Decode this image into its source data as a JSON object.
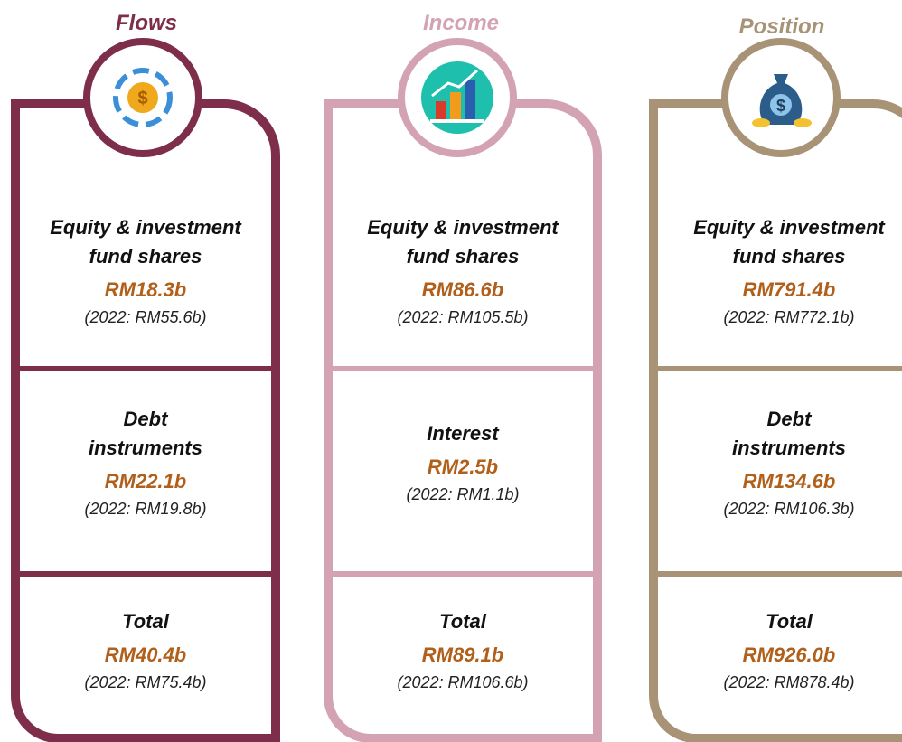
{
  "columns": [
    {
      "title": "Flows",
      "color": "#7e2d4a",
      "sections": [
        {
          "label": [
            "Equity & investment",
            "fund shares"
          ],
          "value": "RM18.3b",
          "previous": "(2022: RM55.6b)"
        },
        {
          "label": [
            "Debt",
            "instruments"
          ],
          "value": "RM22.1b",
          "previous": "(2022: RM19.8b)"
        },
        {
          "label": [
            "Total"
          ],
          "value": "RM40.4b",
          "previous": "(2022: RM75.4b)"
        }
      ]
    },
    {
      "title": "Income",
      "color": "#d3a3b4",
      "sections": [
        {
          "label": [
            "Equity & investment",
            "fund shares"
          ],
          "value": "RM86.6b",
          "previous": "(2022: RM105.5b)"
        },
        {
          "label": [
            "Interest"
          ],
          "value": "RM2.5b",
          "previous": "(2022: RM1.1b)"
        },
        {
          "label": [
            "Total"
          ],
          "value": "RM89.1b",
          "previous": "(2022: RM106.6b)"
        }
      ]
    },
    {
      "title": "Position",
      "color": "#a89377",
      "sections": [
        {
          "label": [
            "Equity & investment",
            "fund shares"
          ],
          "value": "RM791.4b",
          "previous": "(2022: RM772.1b)"
        },
        {
          "label": [
            "Debt",
            "instruments"
          ],
          "value": "RM134.6b",
          "previous": "(2022: RM106.3b)"
        },
        {
          "label": [
            "Total"
          ],
          "value": "RM926.0b",
          "previous": "(2022: RM878.4b)"
        }
      ]
    }
  ]
}
